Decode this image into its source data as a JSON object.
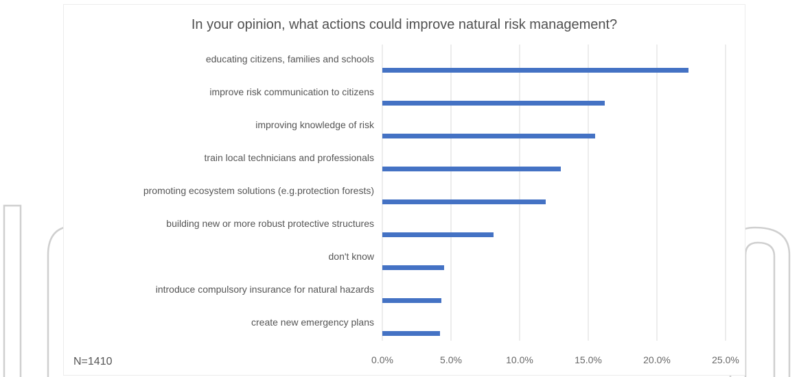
{
  "note": "N=1410",
  "colors": {
    "bar": "#4472c4",
    "grid": "#d9d9d9",
    "text": "#555555",
    "watermark": "#c8c8c8"
  },
  "chart_data": {
    "type": "bar",
    "orientation": "horizontal",
    "title": "In your opinion, what actions could improve natural risk management?",
    "xlabel": "",
    "ylabel": "",
    "categories": [
      "educating citizens, families and schools",
      "improve risk communication to citizens",
      "improving knowledge of risk",
      "train local technicians and professionals",
      "promoting ecosystem solutions (e.g.protection forests)",
      "building new or more robust protective structures",
      "don't know",
      "introduce compulsory insurance for natural hazards",
      "create new emergency plans"
    ],
    "values": [
      22.3,
      16.2,
      15.5,
      13.0,
      11.9,
      8.1,
      4.5,
      4.3,
      4.2
    ],
    "unit": "%",
    "xlim": [
      0,
      25
    ],
    "ticks": [
      0,
      5,
      10,
      15,
      20,
      25
    ],
    "tick_labels": [
      "0.0%",
      "5.0%",
      "10.0%",
      "15.0%",
      "20.0%",
      "25.0%"
    ],
    "grid": true,
    "legend": "none"
  }
}
